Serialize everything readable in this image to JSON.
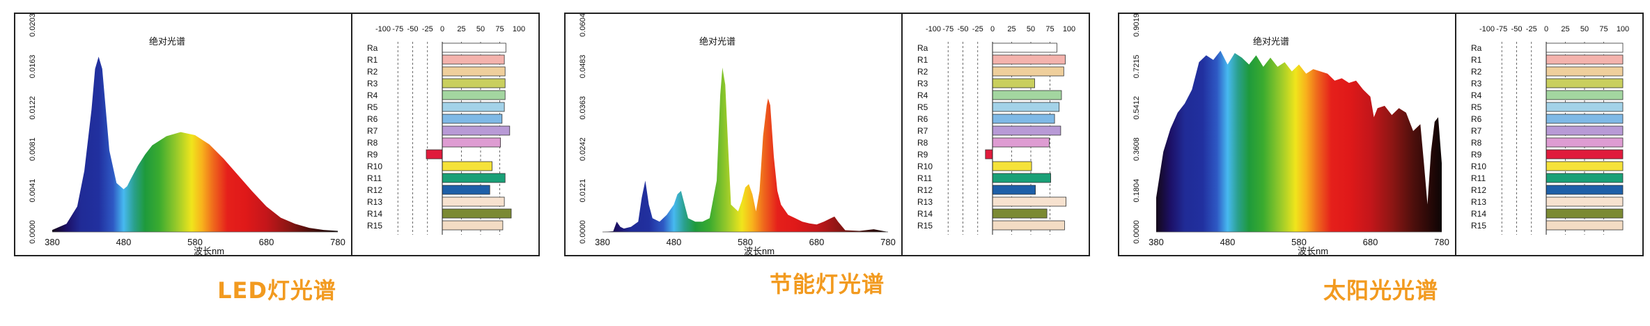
{
  "chart_data": [
    {
      "type": "area",
      "title": "绝对光谱",
      "caption": "LED灯光谱",
      "xlabel": "波长nm",
      "xlim": [
        380,
        780
      ],
      "x_ticks": [
        "380",
        "480",
        "580",
        "680",
        "780"
      ],
      "y_ticks": [
        "0.0000",
        "0.0041",
        "0.0081",
        "0.0122",
        "0.0163",
        "0.0203"
      ],
      "ylim": [
        0,
        0.0203
      ],
      "spectrum": {
        "x": [
          380,
          400,
          415,
          425,
          435,
          440,
          445,
          450,
          455,
          460,
          470,
          480,
          485,
          490,
          500,
          510,
          520,
          540,
          560,
          580,
          600,
          620,
          640,
          660,
          680,
          700,
          720,
          740,
          760,
          780
        ],
        "y": [
          0.0002,
          0.0008,
          0.0025,
          0.006,
          0.012,
          0.016,
          0.0172,
          0.016,
          0.012,
          0.008,
          0.0048,
          0.0042,
          0.0045,
          0.0052,
          0.0065,
          0.0076,
          0.0085,
          0.0094,
          0.0098,
          0.0095,
          0.0086,
          0.0072,
          0.0056,
          0.004,
          0.0025,
          0.0014,
          0.0008,
          0.0004,
          0.0002,
          0.0001
        ]
      },
      "cri": {
        "x_ticks": [
          "-100",
          "-75",
          "-50",
          "-25",
          "0",
          "25",
          "50",
          "75",
          "100"
        ],
        "labels": [
          "Ra",
          "R1",
          "R2",
          "R3",
          "R4",
          "R5",
          "R6",
          "R7",
          "R8",
          "R9",
          "R10",
          "R11",
          "R12",
          "R13",
          "R14",
          "R15"
        ],
        "values": [
          83,
          81,
          82,
          82,
          82,
          81,
          78,
          88,
          76,
          -27,
          65,
          82,
          62,
          81,
          90,
          79
        ]
      }
    },
    {
      "type": "area",
      "title": "绝对光谱",
      "caption": "节能灯光谱",
      "xlabel": "波长nm",
      "xlim": [
        380,
        780
      ],
      "x_ticks": [
        "380",
        "480",
        "580",
        "680",
        "780"
      ],
      "y_ticks": [
        "0.0000",
        "0.0121",
        "0.0242",
        "0.0363",
        "0.0483",
        "0.0604"
      ],
      "ylim": [
        0,
        0.0604
      ],
      "spectrum": {
        "x": [
          380,
          395,
          400,
          405,
          410,
          420,
          430,
          435,
          440,
          445,
          450,
          460,
          470,
          480,
          485,
          490,
          495,
          500,
          510,
          520,
          530,
          540,
          545,
          548,
          552,
          556,
          560,
          570,
          575,
          580,
          585,
          590,
          595,
          600,
          605,
          610,
          612,
          615,
          620,
          625,
          630,
          640,
          650,
          660,
          670,
          680,
          690,
          700,
          705,
          710,
          720,
          740,
          760,
          780
        ],
        "y": [
          0.0,
          0.0002,
          0.003,
          0.0015,
          0.001,
          0.0015,
          0.003,
          0.01,
          0.015,
          0.008,
          0.004,
          0.003,
          0.005,
          0.008,
          0.011,
          0.012,
          0.008,
          0.004,
          0.003,
          0.003,
          0.004,
          0.015,
          0.04,
          0.048,
          0.043,
          0.025,
          0.008,
          0.006,
          0.009,
          0.013,
          0.014,
          0.011,
          0.006,
          0.012,
          0.028,
          0.037,
          0.039,
          0.037,
          0.022,
          0.012,
          0.008,
          0.005,
          0.004,
          0.003,
          0.0025,
          0.0022,
          0.003,
          0.004,
          0.0045,
          0.003,
          0.0005,
          0.0003,
          0.0008,
          0.0
        ]
      },
      "cri": {
        "x_ticks": [
          "-100",
          "-75",
          "-50",
          "-25",
          "0",
          "25",
          "50",
          "75",
          "100"
        ],
        "labels": [
          "Ra",
          "R1",
          "R2",
          "R3",
          "R4",
          "R5",
          "R6",
          "R7",
          "R8",
          "R9",
          "R10",
          "R11",
          "R12",
          "R13",
          "R14",
          "R15"
        ],
        "values": [
          84,
          95,
          93,
          55,
          90,
          87,
          81,
          89,
          74,
          -12,
          51,
          76,
          56,
          96,
          71,
          94
        ]
      }
    },
    {
      "type": "area",
      "title": "绝对光谱",
      "caption": "太阳光光谱",
      "xlabel": "波长nm",
      "xlim": [
        380,
        780
      ],
      "x_ticks": [
        "380",
        "480",
        "580",
        "680",
        "780"
      ],
      "y_ticks": [
        "0.0000",
        "0.1804",
        "0.3608",
        "0.5412",
        "0.7215",
        "0.9019"
      ],
      "ylim": [
        0,
        0.9019
      ],
      "spectrum": {
        "x": [
          380,
          390,
          400,
          410,
          420,
          430,
          440,
          450,
          460,
          470,
          480,
          490,
          500,
          510,
          520,
          530,
          540,
          550,
          560,
          570,
          580,
          590,
          600,
          610,
          620,
          630,
          640,
          650,
          660,
          670,
          680,
          685,
          690,
          700,
          710,
          720,
          730,
          740,
          750,
          755,
          760,
          765,
          770,
          775,
          780
        ],
        "y": [
          0.15,
          0.35,
          0.45,
          0.52,
          0.56,
          0.62,
          0.74,
          0.77,
          0.75,
          0.79,
          0.73,
          0.78,
          0.76,
          0.73,
          0.77,
          0.72,
          0.76,
          0.72,
          0.74,
          0.7,
          0.73,
          0.69,
          0.71,
          0.7,
          0.69,
          0.66,
          0.67,
          0.65,
          0.66,
          0.62,
          0.59,
          0.5,
          0.54,
          0.55,
          0.51,
          0.54,
          0.52,
          0.44,
          0.47,
          0.3,
          0.12,
          0.35,
          0.48,
          0.5,
          0.3
        ]
      },
      "cri": {
        "x_ticks": [
          "-100",
          "-75",
          "-50",
          "-25",
          "0",
          "25",
          "50",
          "75",
          "100"
        ],
        "labels": [
          "Ra",
          "R1",
          "R2",
          "R3",
          "R4",
          "R5",
          "R6",
          "R7",
          "R8",
          "R9",
          "R10",
          "R11",
          "R12",
          "R13",
          "R14",
          "R15"
        ],
        "values": [
          100,
          100,
          100,
          100,
          100,
          100,
          100,
          100,
          100,
          100,
          100,
          100,
          100,
          100,
          100,
          100
        ]
      }
    }
  ],
  "cri_colors": [
    "#ffffff",
    "#f4b3ad",
    "#efcf9c",
    "#c9cf5e",
    "#a3d6a0",
    "#a3d2e8",
    "#7fb9e6",
    "#b89ad6",
    "#de9cd2",
    "#e01b3c",
    "#f5e23a",
    "#1aa077",
    "#1d5fa8",
    "#f7e2cf",
    "#7b8a33",
    "#f3dcc4"
  ]
}
